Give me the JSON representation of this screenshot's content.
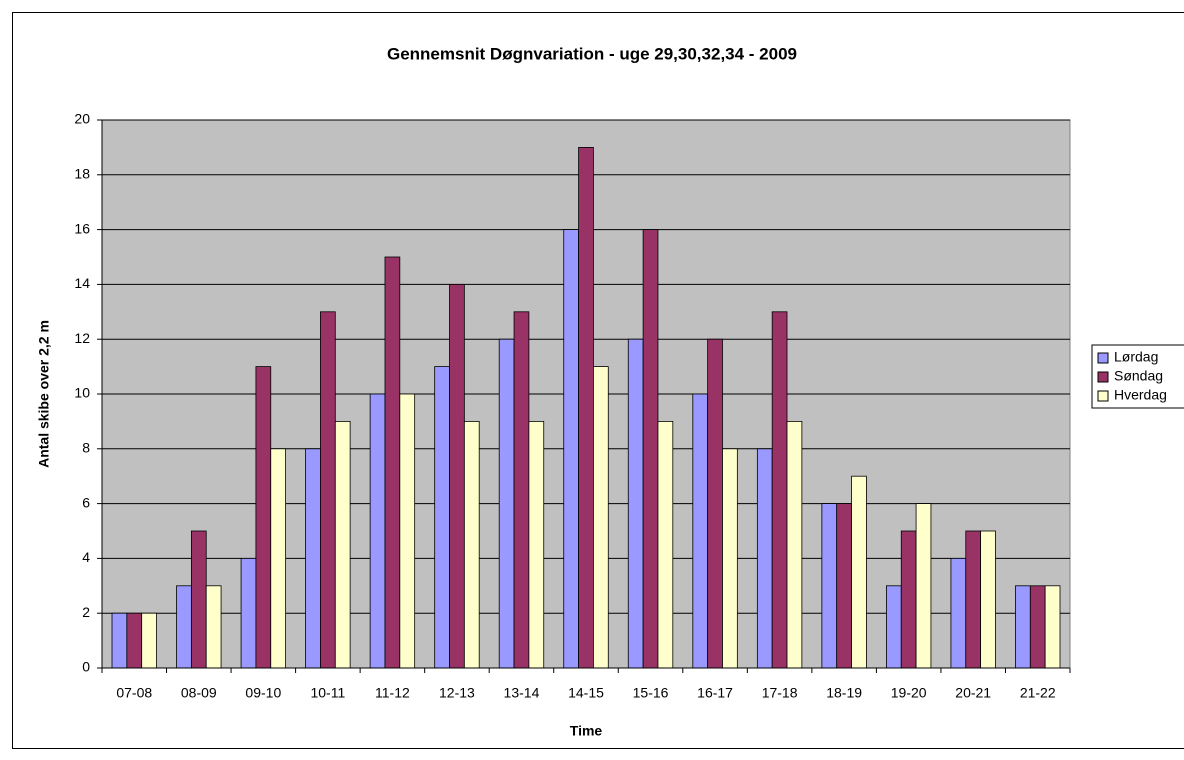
{
  "chart_data": {
    "type": "bar",
    "title": "Gennemsnit Døgnvariation - uge 29,30,32,34 - 2009",
    "x_label": "Time",
    "y_label": "Antal skibe over 2,2 m",
    "categories": [
      "07-08",
      "08-09",
      "09-10",
      "10-11",
      "11-12",
      "12-13",
      "13-14",
      "14-15",
      "15-16",
      "16-17",
      "17-18",
      "18-19",
      "19-20",
      "20-21",
      "21-22"
    ],
    "series": [
      {
        "name": "Lørdag",
        "color": "#9999ff",
        "values": [
          2,
          3,
          4,
          8,
          10,
          11,
          12,
          16,
          12,
          10,
          8,
          6,
          3,
          4,
          3
        ]
      },
      {
        "name": "Søndag",
        "color": "#993366",
        "values": [
          2,
          5,
          11,
          13,
          15,
          14,
          13,
          19,
          16,
          12,
          13,
          6,
          5,
          5,
          3
        ]
      },
      {
        "name": "Hverdag",
        "color": "#ffffcc",
        "values": [
          2,
          3,
          8,
          9,
          10,
          9,
          9,
          11,
          9,
          8,
          9,
          7,
          6,
          5,
          3
        ]
      }
    ],
    "ylim": [
      0,
      20
    ],
    "yticks": [
      0,
      2,
      4,
      6,
      8,
      10,
      12,
      14,
      16,
      18,
      20
    ],
    "grid": true,
    "legend": "right"
  }
}
